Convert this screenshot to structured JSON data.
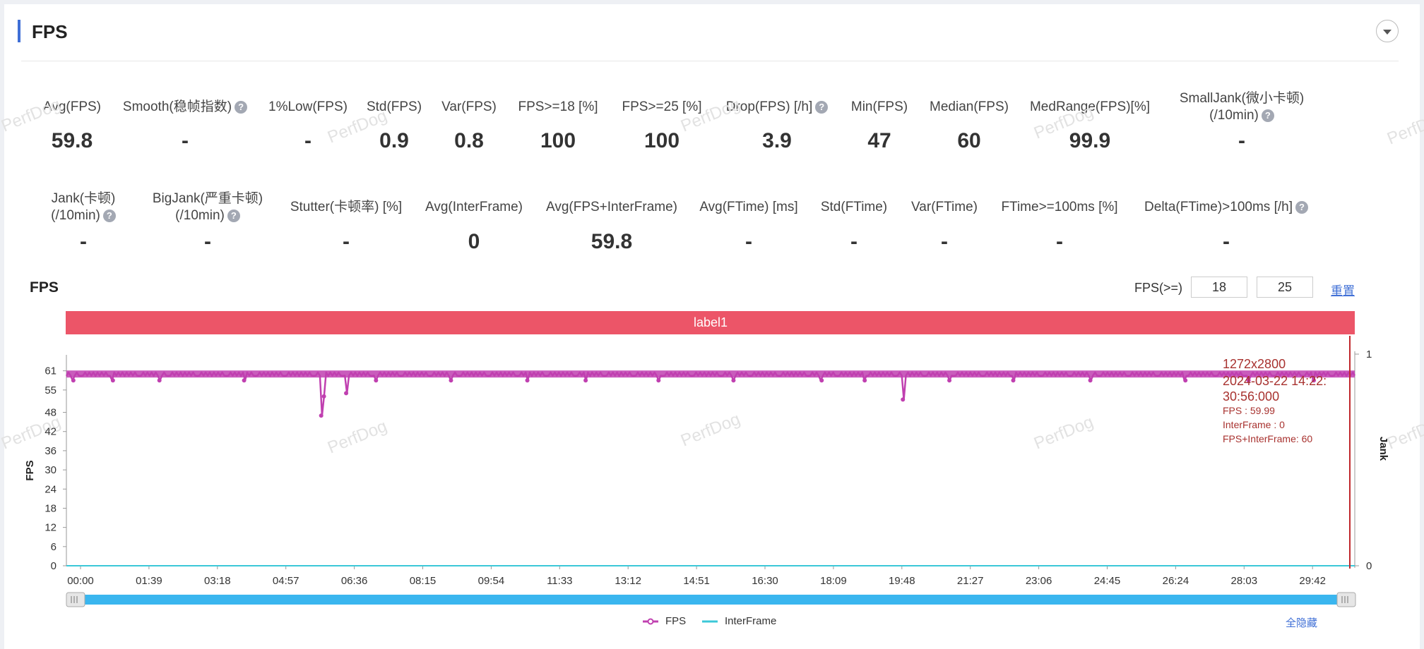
{
  "header": {
    "title": "FPS"
  },
  "metrics_row1": [
    {
      "label": "Avg(FPS)",
      "value": "59.8",
      "help": false
    },
    {
      "label": "Smooth(稳帧指数)",
      "value": "-",
      "help": true
    },
    {
      "label": "1%Low(FPS)",
      "value": "-",
      "help": false
    },
    {
      "label": "Std(FPS)",
      "value": "0.9",
      "help": false
    },
    {
      "label": "Var(FPS)",
      "value": "0.8",
      "help": false
    },
    {
      "label": "FPS>=18 [%]",
      "value": "100",
      "help": false
    },
    {
      "label": "FPS>=25 [%]",
      "value": "100",
      "help": false
    },
    {
      "label": "Drop(FPS) [/h]",
      "value": "3.9",
      "help": true
    },
    {
      "label": "Min(FPS)",
      "value": "47",
      "help": false
    },
    {
      "label": "Median(FPS)",
      "value": "60",
      "help": false
    },
    {
      "label": "MedRange(FPS)[%]",
      "value": "99.9",
      "help": false
    },
    {
      "label": "SmallJank(微小卡顿)",
      "label2": "(/10min)",
      "value": "-",
      "help": true
    }
  ],
  "metrics_row2": [
    {
      "label": "Jank(卡顿)",
      "label2": "(/10min)",
      "value": "-",
      "help": true
    },
    {
      "label": "BigJank(严重卡顿)",
      "label2": "(/10min)",
      "value": "-",
      "help": true
    },
    {
      "label": "Stutter(卡顿率) [%]",
      "value": "-",
      "help": false
    },
    {
      "label": "Avg(InterFrame)",
      "value": "0",
      "help": false
    },
    {
      "label": "Avg(FPS+InterFrame)",
      "value": "59.8",
      "help": false
    },
    {
      "label": "Avg(FTime) [ms]",
      "value": "-",
      "help": false
    },
    {
      "label": "Std(FTime)",
      "value": "-",
      "help": false
    },
    {
      "label": "Var(FTime)",
      "value": "-",
      "help": false
    },
    {
      "label": "FTime>=100ms [%]",
      "value": "-",
      "help": false
    },
    {
      "label": "Delta(FTime)>100ms [/h]",
      "value": "-",
      "help": true
    }
  ],
  "chart_section": {
    "title": "FPS",
    "threshold_label": "FPS(>=)",
    "threshold1": "18",
    "threshold2": "25",
    "reset_label": "重置",
    "hide_all_label": "全隐藏",
    "watermark": "PerfDog"
  },
  "chart_data": {
    "type": "line",
    "label_band": "label1",
    "ylabel": "FPS",
    "y2label": "Jank",
    "y_ticks": [
      0,
      6,
      12,
      18,
      24,
      30,
      36,
      42,
      48,
      55,
      61
    ],
    "ylim": [
      0,
      66
    ],
    "y2_ticks": [
      0,
      1
    ],
    "x_ticks": [
      "00:00",
      "01:39",
      "03:18",
      "04:57",
      "06:36",
      "08:15",
      "09:54",
      "11:33",
      "13:12",
      "14:51",
      "16:30",
      "18:09",
      "19:48",
      "21:27",
      "23:06",
      "24:45",
      "26:24",
      "28:03",
      "29:42"
    ],
    "duration_seconds": 1856,
    "series": [
      {
        "name": "FPS",
        "color": "#c040b0",
        "baseline": 60,
        "dips": [
          {
            "t": 367,
            "v": 47
          },
          {
            "t": 371,
            "v": 53
          },
          {
            "t": 403,
            "v": 54
          },
          {
            "t": 1205,
            "v": 52
          },
          {
            "t": 10,
            "v": 58
          },
          {
            "t": 67,
            "v": 58
          },
          {
            "t": 134,
            "v": 58
          },
          {
            "t": 256,
            "v": 58
          },
          {
            "t": 446,
            "v": 58
          },
          {
            "t": 554,
            "v": 58
          },
          {
            "t": 664,
            "v": 58
          },
          {
            "t": 748,
            "v": 58
          },
          {
            "t": 853,
            "v": 58
          },
          {
            "t": 961,
            "v": 58
          },
          {
            "t": 1088,
            "v": 58
          },
          {
            "t": 1150,
            "v": 58
          },
          {
            "t": 1272,
            "v": 58
          },
          {
            "t": 1364,
            "v": 58
          },
          {
            "t": 1475,
            "v": 58
          },
          {
            "t": 1612,
            "v": 58
          },
          {
            "t": 1703,
            "v": 58
          },
          {
            "t": 1797,
            "v": 58
          }
        ]
      },
      {
        "name": "InterFrame",
        "color": "#3cc8d8",
        "value": 0
      }
    ],
    "tooltip": {
      "line1": "1272x2800",
      "line2": "2024-03-22 14:22:",
      "line3": "30:56:000",
      "rows": [
        "FPS              : 59.99",
        "InterFrame        : 0",
        "FPS+InterFrame: 60"
      ]
    }
  }
}
